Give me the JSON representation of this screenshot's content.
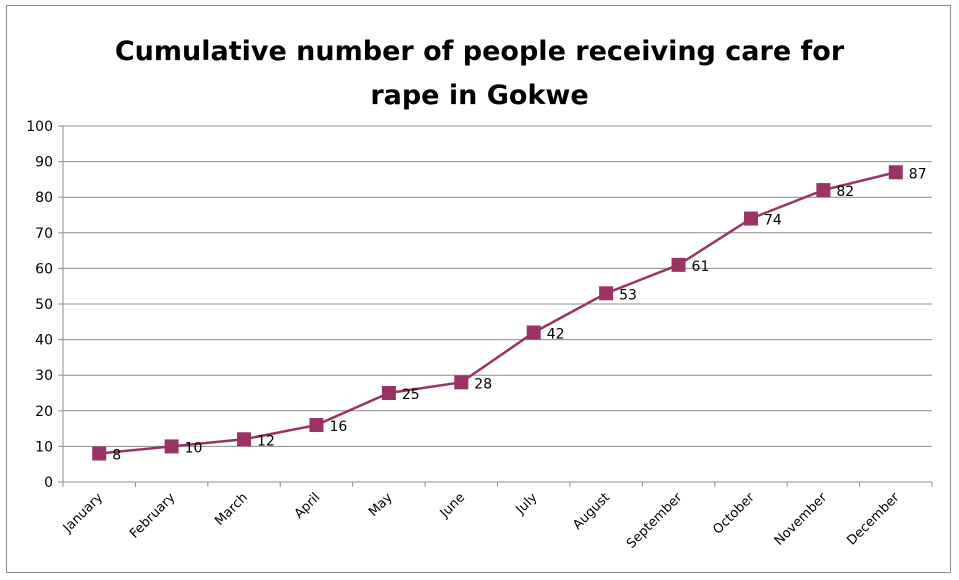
{
  "chart_data": {
    "type": "line",
    "title_lines": [
      "Cumulative number of people receiving care for",
      "rape in Gokwe"
    ],
    "categories": [
      "January",
      "February",
      "March",
      "April",
      "May",
      "June",
      "July",
      "August",
      "September",
      "October",
      "November",
      "December"
    ],
    "values": [
      8,
      10,
      12,
      16,
      25,
      28,
      42,
      53,
      61,
      74,
      82,
      87
    ],
    "ylim": [
      0,
      100
    ],
    "yticks": [
      0,
      10,
      20,
      30,
      40,
      50,
      60,
      70,
      80,
      90,
      100
    ],
    "grid": true,
    "legend": "none",
    "line_color": "#993366",
    "marker": "square",
    "data_labels": true
  }
}
